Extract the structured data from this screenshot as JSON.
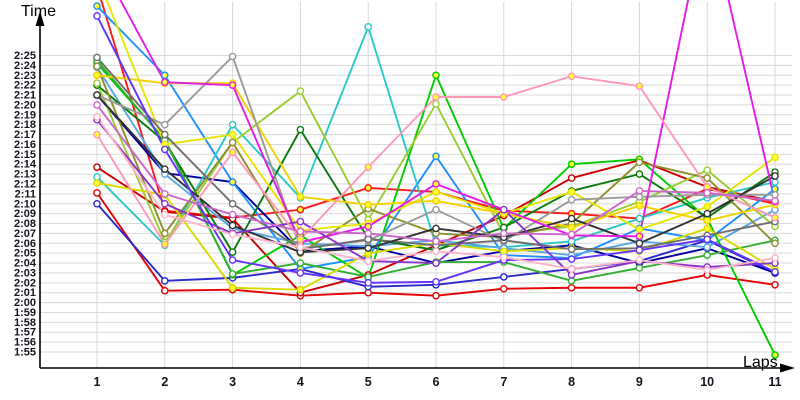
{
  "chart_data": {
    "type": "line",
    "title": "",
    "xlabel": "Laps",
    "ylabel": "Time",
    "x_tick_labels": [
      "1",
      "2",
      "3",
      "4",
      "5",
      "6",
      "7",
      "8",
      "9",
      "10",
      "11"
    ],
    "y_tick_labels": [
      "2:25",
      "2:24",
      "2:23",
      "2:22",
      "2:21",
      "2:20",
      "2:19",
      "2:18",
      "2:17",
      "2:16",
      "2:15",
      "2:14",
      "2:13",
      "2:12",
      "2:11",
      "2:10",
      "2:09",
      "2:08",
      "2:07",
      "2:06",
      "2:05",
      "2:04",
      "2:03",
      "2:02",
      "2:01",
      "2:00",
      "1:59",
      "1:58",
      "1:57",
      "1:56",
      "1:55"
    ],
    "ylim_seconds": [
      115,
      145
    ],
    "xlim_laps": [
      1,
      11
    ],
    "grid": true,
    "legend": "none",
    "grid_color": "#d9d9d9",
    "axis_color": "#000000",
    "tick_label_color": "#14141e",
    "series": [
      {
        "name": "series-1",
        "color": "#e60000",
        "marker_fill": "white",
        "values_seconds": [
          131.1,
          121.2,
          121.3,
          120.7,
          121.0,
          120.7,
          121.4,
          121.5,
          121.5,
          122.8,
          121.8
        ]
      },
      {
        "name": "series-2",
        "color": "#ff1a1a",
        "marker_fill": "yellow",
        "values_seconds": [
          152.0,
          129.3,
          128.6,
          129.4,
          131.6,
          131.2,
          129.3,
          129.0,
          128.5,
          131.5,
          130.0
        ]
      },
      {
        "name": "series-3",
        "color": "#cc0000",
        "marker_fill": "white",
        "values_seconds": [
          133.7,
          129.2,
          128.5,
          121.0,
          122.8,
          125.8,
          128.8,
          132.6,
          134.4,
          131.7,
          130.2
        ]
      },
      {
        "name": "series-4",
        "color": "#2929cc",
        "marker_fill": "white",
        "values_seconds": [
          130.0,
          122.2,
          122.5,
          123.4,
          121.6,
          121.8,
          122.6,
          123.4,
          124.2,
          126.3,
          123.0
        ]
      },
      {
        "name": "series-5",
        "color": "#0000a0",
        "marker_fill": "yellow",
        "values_seconds": [
          141.0,
          133.1,
          132.2,
          125.2,
          125.7,
          124.0,
          125.2,
          125.8,
          124.0,
          125.5,
          123.0
        ]
      },
      {
        "name": "series-6",
        "color": "#1e90ff",
        "marker_fill": "yellow",
        "values_seconds": [
          150.0,
          143.0,
          132.2,
          123.4,
          124.6,
          134.8,
          124.8,
          124.5,
          127.5,
          126.3,
          131.5
        ]
      },
      {
        "name": "series-7",
        "color": "#2cc8c8",
        "marker_fill": "white",
        "values_seconds": [
          132.7,
          125.8,
          138.0,
          130.6,
          147.9,
          125.8,
          125.6,
          126.2,
          128.5,
          130.6,
          132.2
        ]
      },
      {
        "name": "series-8",
        "color": "#5aa7e6",
        "marker_fill": "white",
        "values_seconds": [
          143.8,
          133.0,
          127.5,
          126.0,
          125.7,
          126.3,
          125.5,
          124.8,
          126.2,
          125.6,
          129.4
        ]
      },
      {
        "name": "series-9",
        "color": "#00cc00",
        "marker_fill": "yellow",
        "values_seconds": [
          144.2,
          136.5,
          122.8,
          126.8,
          122.5,
          143.0,
          127.5,
          134.0,
          134.5,
          128.5,
          114.7
        ]
      },
      {
        "name": "series-10",
        "color": "#0a7a0a",
        "marker_fill": "white",
        "values_seconds": [
          142.0,
          136.3,
          125.1,
          137.5,
          126.5,
          125.3,
          127.6,
          131.3,
          133.0,
          128.6,
          133.2
        ]
      },
      {
        "name": "series-11",
        "color": "#33b033",
        "marker_fill": "white",
        "values_seconds": [
          144.5,
          136.4,
          122.9,
          124.0,
          122.6,
          124.1,
          124.1,
          122.2,
          123.5,
          124.8,
          126.3
        ]
      },
      {
        "name": "series-12",
        "color": "#9acd32",
        "marker_fill": "white",
        "values_seconds": [
          142.2,
          126.1,
          136.2,
          141.4,
          128.4,
          140.1,
          126.9,
          127.7,
          130.2,
          133.4,
          127.7
        ]
      },
      {
        "name": "series-13",
        "color": "#8f8f2e",
        "marker_fill": "white",
        "values_seconds": [
          143.9,
          127.0,
          136.2,
          125.0,
          129.5,
          127.0,
          126.6,
          128.0,
          134.2,
          132.6,
          126.0
        ]
      },
      {
        "name": "series-14",
        "color": "#e6e600",
        "marker_fill": "yellow",
        "values_seconds": [
          153.0,
          136.0,
          137.0,
          127.3,
          128.0,
          131.2,
          129.0,
          131.2,
          127.4,
          129.7,
          134.7
        ]
      },
      {
        "name": "series-15",
        "color": "#f2d200",
        "marker_fill": "yellow",
        "values_seconds": [
          143.0,
          142.2,
          142.2,
          130.7,
          129.9,
          130.3,
          129.0,
          127.6,
          129.8,
          128.3,
          129.9
        ]
      },
      {
        "name": "series-16",
        "color": "#d9d900",
        "marker_fill": "yellow",
        "values_seconds": [
          132.1,
          130.9,
          121.5,
          121.3,
          125.0,
          126.0,
          125.2,
          125.5,
          125.2,
          127.5,
          123.4
        ]
      },
      {
        "name": "series-17",
        "color": "#9a9a9a",
        "marker_fill": "white",
        "values_seconds": [
          141.0,
          138.0,
          144.9,
          125.5,
          126.3,
          129.4,
          126.2,
          130.4,
          130.7,
          130.9,
          130.9
        ]
      },
      {
        "name": "series-18",
        "color": "#6e6e6e",
        "marker_fill": "white",
        "values_seconds": [
          144.8,
          137.0,
          130.0,
          125.4,
          126.4,
          125.8,
          126.3,
          125.4,
          125.5,
          126.8,
          128.2
        ]
      },
      {
        "name": "series-19",
        "color": "#333333",
        "marker_fill": "white",
        "values_seconds": [
          141.0,
          133.5,
          127.8,
          125.1,
          125.5,
          127.5,
          126.6,
          128.5,
          126.0,
          129.0,
          132.8
        ]
      },
      {
        "name": "series-20",
        "color": "#e61ae6",
        "marker_fill": "yellow",
        "values_seconds": [
          155.0,
          142.3,
          142.0,
          126.1,
          127.7,
          132.0,
          129.4,
          126.8,
          126.7,
          160.0,
          130.2
        ]
      },
      {
        "name": "series-21",
        "color": "#8c33cc",
        "marker_fill": "white",
        "values_seconds": [
          138.5,
          130.0,
          127.0,
          128.2,
          124.2,
          124.0,
          129.4,
          122.8,
          124.2,
          123.6,
          124.0
        ]
      },
      {
        "name": "series-22",
        "color": "#6633ff",
        "marker_fill": "white",
        "values_seconds": [
          149.0,
          135.5,
          124.3,
          123.0,
          122.0,
          122.1,
          124.3,
          124.4,
          125.3,
          126.4,
          123.1
        ]
      },
      {
        "name": "series-23",
        "color": "#ff99b8",
        "marker_fill": "yellow",
        "values_seconds": [
          137.0,
          125.9,
          135.2,
          126.4,
          133.7,
          140.8,
          140.8,
          142.9,
          141.9,
          131.7,
          128.6
        ]
      },
      {
        "name": "series-24",
        "color": "#ffb3cb",
        "marker_fill": "white",
        "values_seconds": [
          138.8,
          128.9,
          126.9,
          125.6,
          124.2,
          125.2,
          124.6,
          123.4,
          124.3,
          123.3,
          124.5
        ]
      },
      {
        "name": "series-25",
        "color": "#cc66cc",
        "marker_fill": "white",
        "values_seconds": [
          140.0,
          131.0,
          128.9,
          127.2,
          127.0,
          126.2,
          127.0,
          126.9,
          131.3,
          131.1,
          130.3
        ]
      }
    ]
  }
}
